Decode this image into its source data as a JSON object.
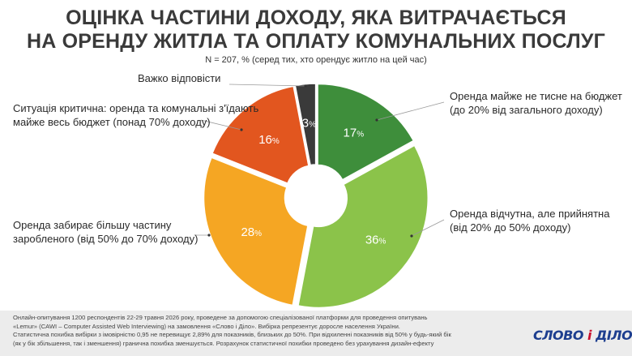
{
  "header": {
    "title_line1": "ОЦІНКА ЧАСТИНИ ДОХОДУ, ЯКА ВИТРАЧАЄТЬСЯ",
    "title_line2": "НА ОРЕНДУ ЖИТЛА ТА ОПЛАТУ КОМУНАЛЬНИХ ПОСЛУГ",
    "subtitle": "N = 207, % (серед тих, хто орендує житло на цей час)"
  },
  "chart_data": {
    "type": "pie",
    "donut": true,
    "unit": "%",
    "start": "top",
    "direction": "clockwise",
    "slices": [
      {
        "label_line1": "Оренда майже не тисне на бюджет",
        "label_line2": "(до 20% від загального доходу)",
        "value": 17,
        "display": "17",
        "color": "#3e8e3b"
      },
      {
        "label_line1": "Оренда відчутна, але прийнятна",
        "label_line2": "(від 20% до 50% доходу)",
        "value": 36,
        "display": "36",
        "color": "#8bc34a"
      },
      {
        "label_line1": "Оренда забирає більшу частину",
        "label_line2": "заробленого (від 50% до 70% доходу)",
        "value": 28,
        "display": "28",
        "color": "#f5a623"
      },
      {
        "label_line1": "Ситуація критична: оренда та комунальні з'їдають",
        "label_line2": "майже весь бюджет (понад 70% доходу)",
        "value": 16,
        "display": "16",
        "color": "#e2561f"
      },
      {
        "label_line1": "Важко відповісти",
        "label_line2": "",
        "value": 3,
        "display": "3",
        "color": "#3a3a3a"
      }
    ]
  },
  "footer": {
    "line1": "Онлайн-опитування 1200 респондентів 22-29 травня 2026 року, проведене за допомогою спеціалізованої платформи для проведення опитувань",
    "line2": "«Lemur» (CAWI – Computer Assisted Web Interviewing) на замовлення «Слово і Діло». Вибірка репрезентує доросле населення України.",
    "line3": "Статистична похибка вибірки з імовірністю 0,95 не перевищує 2,89% для показників, близьких до 50%. При відхиленні показників від 50% у будь-який бік",
    "line4": "(як у бік збільшення, так і зменшення) гранична похибка зменшується. Розрахунок статистичної похибки проведено без урахування дизайн-ефекту",
    "logo_left": "СЛОВО",
    "logo_sep": "і",
    "logo_right": "ДІЛО"
  }
}
